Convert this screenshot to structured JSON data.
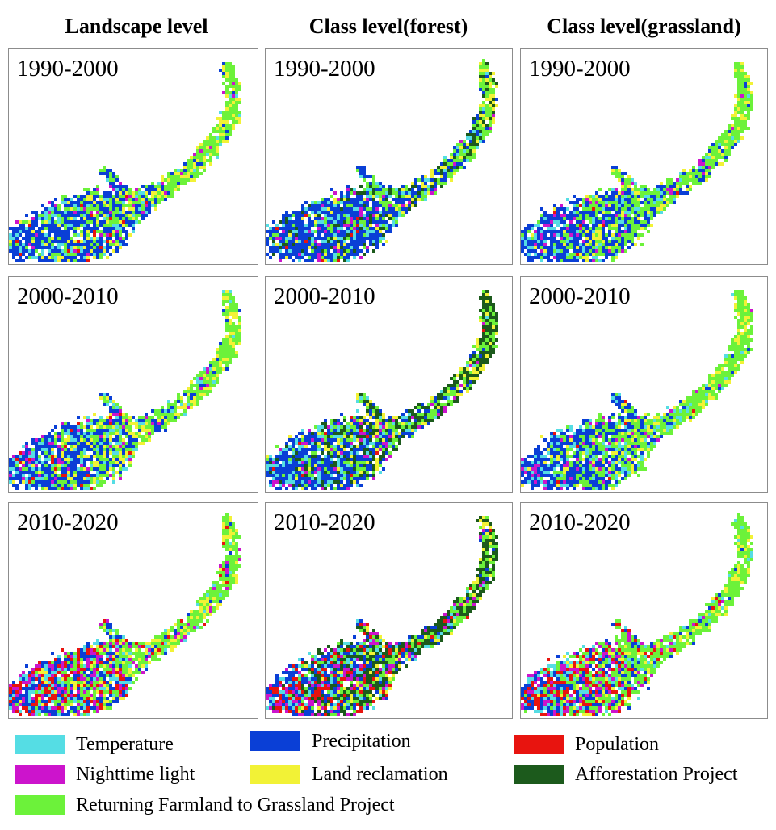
{
  "columns": [
    {
      "title": "Landscape level",
      "key": "landscape"
    },
    {
      "title": "Class level(forest)",
      "key": "forest"
    },
    {
      "title": "Class level(grassland)",
      "key": "grassland"
    }
  ],
  "periods": [
    "1990-2000",
    "2000-2010",
    "2010-2020"
  ],
  "legend": [
    {
      "label": "Temperature",
      "color": "#55dde4"
    },
    {
      "label": "Precipitation",
      "color": "#0a3fd6"
    },
    {
      "label": "Population",
      "color": "#e8140f"
    },
    {
      "label": "Nighttime light",
      "color": "#cc14cc"
    },
    {
      "label": "Land reclamation",
      "color": "#f2f236"
    },
    {
      "label": "Afforestation Project",
      "color": "#1c5a1c"
    },
    {
      "label": "Returning Farmland to Grassland Project",
      "color": "#6cf23a"
    }
  ]
}
